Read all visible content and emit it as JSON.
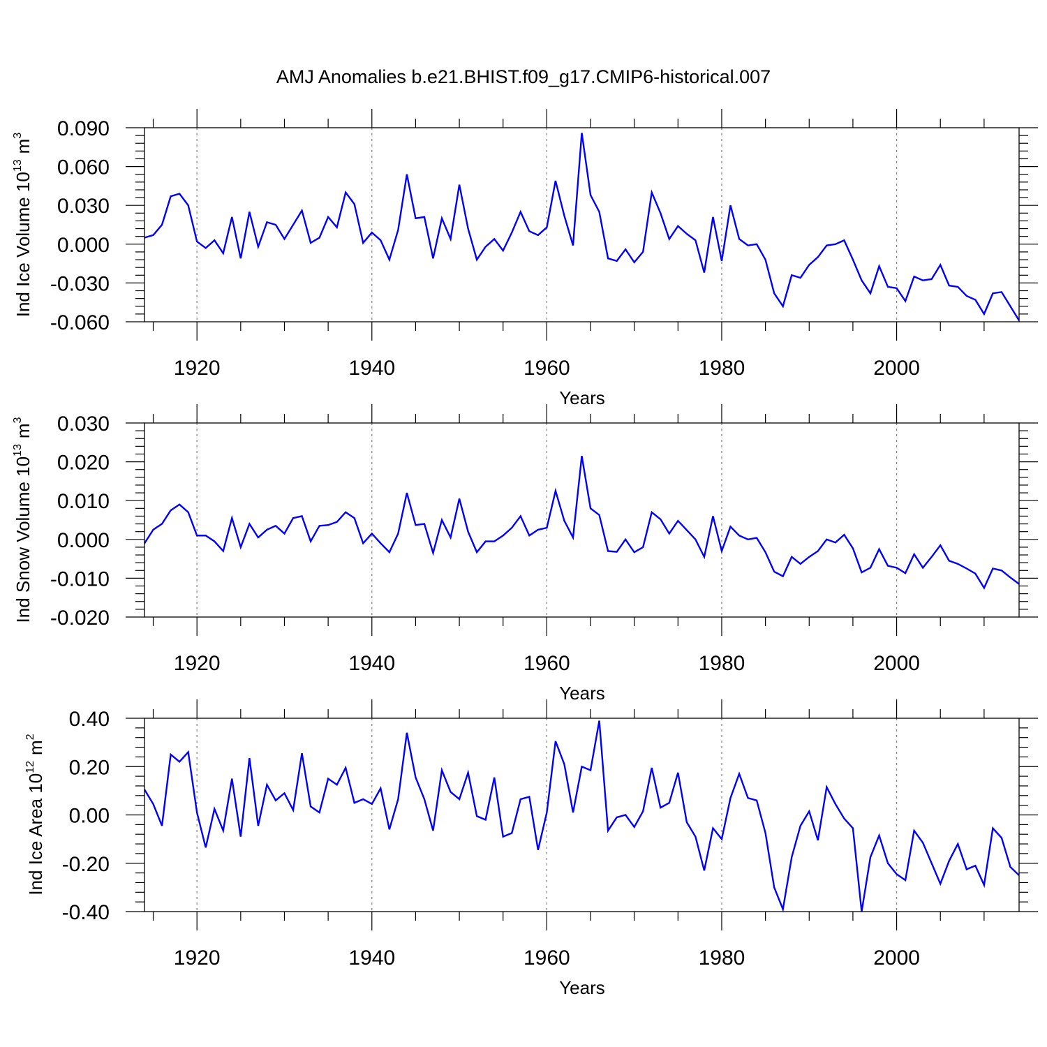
{
  "chart_data": {
    "title": "AMJ Anomalies b.e21.BHIST.f09_g17.CMIP6-historical.007",
    "type": "line",
    "series_color": "#0000ff",
    "grid_color": "#8a8a8a",
    "x": [
      1914,
      1915,
      1916,
      1917,
      1918,
      1919,
      1920,
      1921,
      1922,
      1923,
      1924,
      1925,
      1926,
      1927,
      1928,
      1929,
      1930,
      1931,
      1932,
      1933,
      1934,
      1935,
      1936,
      1937,
      1938,
      1939,
      1940,
      1941,
      1942,
      1943,
      1944,
      1945,
      1946,
      1947,
      1948,
      1949,
      1950,
      1951,
      1952,
      1953,
      1954,
      1955,
      1956,
      1957,
      1958,
      1959,
      1960,
      1961,
      1962,
      1963,
      1964,
      1965,
      1966,
      1967,
      1968,
      1969,
      1970,
      1971,
      1972,
      1973,
      1974,
      1975,
      1976,
      1977,
      1978,
      1979,
      1980,
      1981,
      1982,
      1983,
      1984,
      1985,
      1986,
      1987,
      1988,
      1989,
      1990,
      1991,
      1992,
      1993,
      1994,
      1995,
      1996,
      1997,
      1998,
      1999,
      2000,
      2001,
      2002,
      2003,
      2004,
      2005,
      2006,
      2007,
      2008,
      2009,
      2010,
      2011,
      2012,
      2013,
      2014
    ],
    "xlim": [
      1914,
      2014
    ],
    "xticks": [
      1920,
      1940,
      1960,
      1980,
      2000
    ],
    "xtick_labels": [
      "1920",
      "1940",
      "1960",
      "1980",
      "2000"
    ],
    "panels": [
      {
        "name": "ice-volume",
        "ylabel_main": "Ind Ice Volume 10",
        "ylabel_exp": "13",
        "ylabel_unit": "m",
        "ylabel_unit_exp": "3",
        "xlabel": "Years",
        "ylim": [
          -0.06,
          0.09
        ],
        "yticks": [
          -0.06,
          -0.03,
          0.0,
          0.03,
          0.06,
          0.09
        ],
        "ytick_labels": [
          "-0.060",
          "-0.030",
          "0.000",
          "0.030",
          "0.060",
          "0.090"
        ],
        "minor_step": 0.006,
        "values": [
          0.005,
          0.007,
          0.015,
          0.037,
          0.039,
          0.03,
          0.002,
          -0.003,
          0.003,
          -0.007,
          0.021,
          -0.011,
          0.025,
          -0.002,
          0.017,
          0.015,
          0.004,
          0.015,
          0.026,
          0.001,
          0.005,
          0.021,
          0.013,
          0.04,
          0.031,
          0.001,
          0.009,
          0.003,
          -0.012,
          0.011,
          0.054,
          0.02,
          0.021,
          -0.011,
          0.02,
          0.004,
          0.046,
          0.012,
          -0.012,
          -0.002,
          0.004,
          -0.005,
          0.009,
          0.025,
          0.01,
          0.007,
          0.013,
          0.049,
          0.022,
          -0.001,
          0.086,
          0.038,
          0.025,
          -0.011,
          -0.013,
          -0.004,
          -0.014,
          -0.006,
          0.04,
          0.024,
          0.004,
          0.014,
          0.008,
          0.003,
          -0.022,
          0.021,
          -0.013,
          0.03,
          0.004,
          -0.001,
          0.0,
          -0.012,
          -0.038,
          -0.048,
          -0.024,
          -0.026,
          -0.016,
          -0.01,
          -0.001,
          0.0,
          0.003,
          -0.012,
          -0.028,
          -0.038,
          -0.017,
          -0.033,
          -0.034,
          -0.044,
          -0.025,
          -0.028,
          -0.027,
          -0.016,
          -0.032,
          -0.033,
          -0.04,
          -0.043,
          -0.054,
          -0.038,
          -0.037,
          -0.048,
          -0.059
        ]
      },
      {
        "name": "snow-volume",
        "ylabel_main": "Ind Snow Volume 10",
        "ylabel_exp": "13",
        "ylabel_unit": "m",
        "ylabel_unit_exp": "3",
        "xlabel": "Years",
        "ylim": [
          -0.02,
          0.03
        ],
        "yticks": [
          -0.02,
          -0.01,
          0.0,
          0.01,
          0.02,
          0.03
        ],
        "ytick_labels": [
          "-0.020",
          "-0.010",
          "0.000",
          "0.010",
          "0.020",
          "0.030"
        ],
        "minor_step": 0.002,
        "values": [
          -0.001,
          0.0025,
          0.004,
          0.0075,
          0.009,
          0.007,
          0.001,
          0.001,
          -0.0005,
          -0.003,
          0.0055,
          -0.002,
          0.004,
          0.0005,
          0.0025,
          0.0035,
          0.0015,
          0.0055,
          0.006,
          -0.0005,
          0.0035,
          0.0037,
          0.0045,
          0.007,
          0.0055,
          -0.001,
          0.0015,
          -0.001,
          -0.0033,
          0.0015,
          0.012,
          0.0037,
          0.004,
          -0.0035,
          0.005,
          0.0005,
          0.0105,
          0.002,
          -0.0033,
          -0.0005,
          -0.0005,
          0.001,
          0.003,
          0.006,
          0.001,
          0.0025,
          0.003,
          0.0125,
          0.0048,
          0.0005,
          0.0215,
          0.008,
          0.0063,
          -0.003,
          -0.0032,
          0.0,
          -0.0033,
          -0.002,
          0.007,
          0.0052,
          0.0015,
          0.0048,
          0.0024,
          0.0,
          -0.0045,
          0.006,
          -0.003,
          0.0033,
          0.001,
          0.0,
          0.0004,
          -0.0033,
          -0.0083,
          -0.0095,
          -0.0045,
          -0.0063,
          -0.0045,
          -0.003,
          0.0,
          -0.0008,
          0.0012,
          -0.0023,
          -0.0085,
          -0.0073,
          -0.0025,
          -0.0068,
          -0.0073,
          -0.0087,
          -0.0038,
          -0.0073,
          -0.0045,
          -0.0015,
          -0.0055,
          -0.0063,
          -0.0075,
          -0.0088,
          -0.0125,
          -0.0075,
          -0.008,
          -0.0098,
          -0.0115
        ]
      },
      {
        "name": "ice-area",
        "ylabel_main": "Ind Ice Area 10",
        "ylabel_exp": "12",
        "ylabel_unit": "m",
        "ylabel_unit_exp": "2",
        "xlabel": "Years",
        "ylim": [
          -0.4,
          0.4
        ],
        "yticks": [
          -0.4,
          -0.2,
          0.0,
          0.2,
          0.4
        ],
        "ytick_labels": [
          "-0.40",
          "-0.20",
          "0.00",
          "0.20",
          "0.40"
        ],
        "minor_step": 0.04,
        "values": [
          0.105,
          0.045,
          -0.045,
          0.25,
          0.22,
          0.26,
          0.01,
          -0.135,
          0.025,
          -0.065,
          0.15,
          -0.09,
          0.235,
          -0.045,
          0.125,
          0.06,
          0.09,
          0.02,
          0.255,
          0.035,
          0.01,
          0.15,
          0.125,
          0.195,
          0.05,
          0.065,
          0.045,
          0.11,
          -0.06,
          0.065,
          0.34,
          0.155,
          0.065,
          -0.065,
          0.185,
          0.095,
          0.065,
          0.175,
          -0.005,
          -0.02,
          0.155,
          -0.09,
          -0.075,
          0.065,
          0.075,
          -0.145,
          0.01,
          0.305,
          0.21,
          0.01,
          0.2,
          0.185,
          0.39,
          -0.065,
          -0.01,
          0.0,
          -0.05,
          0.015,
          0.195,
          0.03,
          0.05,
          0.175,
          -0.03,
          -0.09,
          -0.23,
          -0.055,
          -0.1,
          0.07,
          0.17,
          0.07,
          0.06,
          -0.075,
          -0.3,
          -0.39,
          -0.175,
          -0.045,
          0.015,
          -0.105,
          0.115,
          0.045,
          -0.015,
          -0.055,
          -0.4,
          -0.175,
          -0.085,
          -0.2,
          -0.245,
          -0.27,
          -0.065,
          -0.115,
          -0.2,
          -0.285,
          -0.19,
          -0.12,
          -0.225,
          -0.21,
          -0.29,
          -0.055,
          -0.095,
          -0.215,
          -0.25
        ]
      }
    ]
  }
}
